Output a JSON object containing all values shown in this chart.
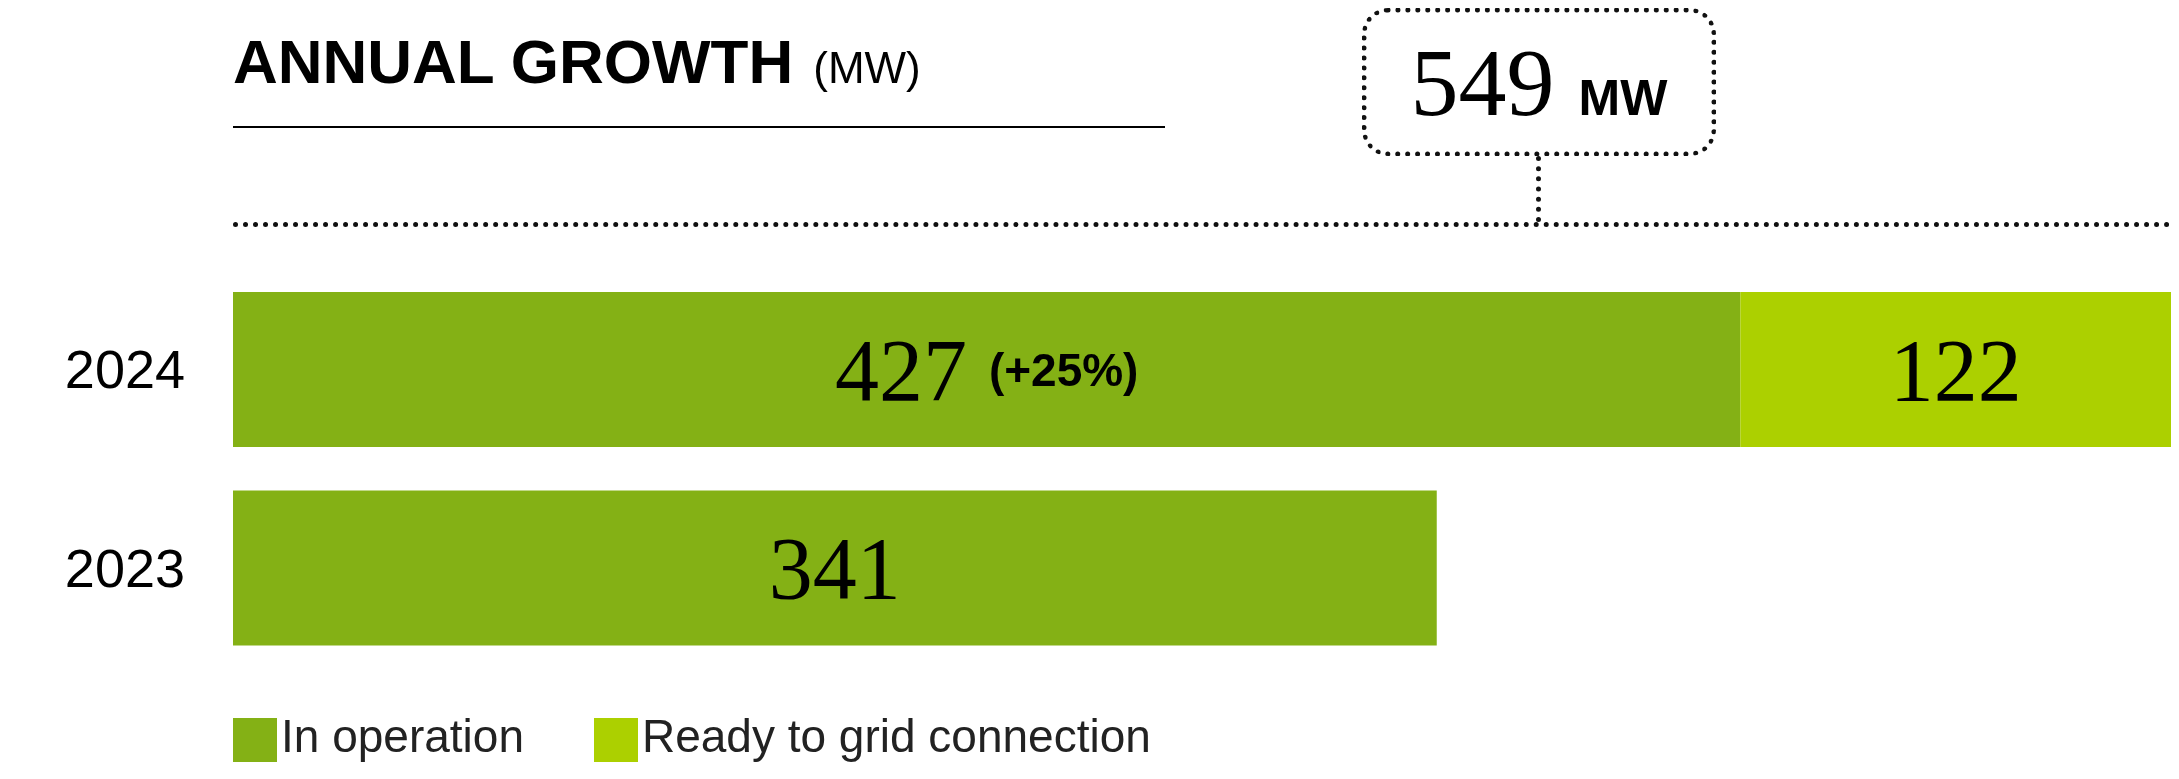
{
  "chart_data": {
    "type": "bar",
    "orientation": "horizontal",
    "stacked": true,
    "title": "ANNUAL GROWTH",
    "subtitle": "(MW)",
    "categories": [
      "2024",
      "2023"
    ],
    "series": [
      {
        "name": "In operation",
        "color": "#84b115",
        "values": [
          427,
          341
        ],
        "value_labels": [
          "427 (+25%)",
          "341"
        ]
      },
      {
        "name": "Ready to grid connection",
        "color": "#acd000",
        "values": [
          122,
          null
        ],
        "value_labels": [
          "122",
          null
        ]
      }
    ],
    "totals": [
      "549 MW",
      null
    ],
    "legend": "bottom left"
  }
}
